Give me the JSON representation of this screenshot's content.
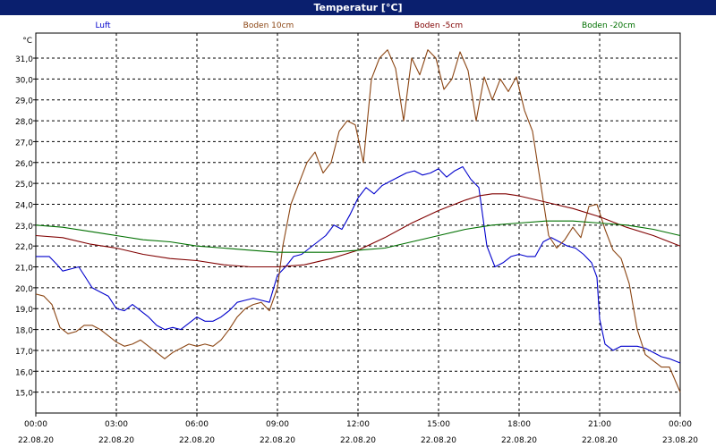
{
  "title": "Temperatur [°C]",
  "chart_data": {
    "type": "line",
    "title": "Temperatur [°C]",
    "ylabel": "°C",
    "xlabel": "",
    "ylim": [
      14.0,
      32.2
    ],
    "xlim": [
      0,
      24
    ],
    "yticks": [
      15.0,
      16.0,
      17.0,
      18.0,
      19.0,
      20.0,
      21.0,
      22.0,
      23.0,
      24.0,
      25.0,
      26.0,
      27.0,
      28.0,
      29.0,
      30.0,
      31.0
    ],
    "ytick_labels": [
      "15,0",
      "16,0",
      "17,0",
      "18,0",
      "19,0",
      "20,0",
      "21,0",
      "22,0",
      "23,0",
      "24,0",
      "25,0",
      "26,0",
      "27,0",
      "28,0",
      "29,0",
      "30,0",
      "31,0"
    ],
    "xticks": [
      {
        "x": 0,
        "time": "00:00",
        "date": "22.08.20"
      },
      {
        "x": 3,
        "time": "03:00",
        "date": "22.08.20"
      },
      {
        "x": 6,
        "time": "06:00",
        "date": "22.08.20"
      },
      {
        "x": 9,
        "time": "09:00",
        "date": "22.08.20"
      },
      {
        "x": 12,
        "time": "12:00",
        "date": "22.08.20"
      },
      {
        "x": 15,
        "time": "15:00",
        "date": "22.08.20"
      },
      {
        "x": 18,
        "time": "18:00",
        "date": "22.08.20"
      },
      {
        "x": 21,
        "time": "21:00",
        "date": "22.08.20"
      },
      {
        "x": 24,
        "time": "00:00",
        "date": "23.08.20"
      }
    ],
    "grid": true,
    "legend_position": "top",
    "series": [
      {
        "name": "Luft",
        "color": "#0000cc",
        "points": [
          [
            0.0,
            21.5
          ],
          [
            0.5,
            21.5
          ],
          [
            0.8,
            21.1
          ],
          [
            1.0,
            20.8
          ],
          [
            1.3,
            20.9
          ],
          [
            1.6,
            21.0
          ],
          [
            1.9,
            20.4
          ],
          [
            2.1,
            20.0
          ],
          [
            2.4,
            19.8
          ],
          [
            2.7,
            19.6
          ],
          [
            3.0,
            19.0
          ],
          [
            3.3,
            18.9
          ],
          [
            3.6,
            19.2
          ],
          [
            3.9,
            18.9
          ],
          [
            4.2,
            18.6
          ],
          [
            4.5,
            18.2
          ],
          [
            4.8,
            18.0
          ],
          [
            5.1,
            18.1
          ],
          [
            5.4,
            18.0
          ],
          [
            5.7,
            18.3
          ],
          [
            6.0,
            18.6
          ],
          [
            6.3,
            18.4
          ],
          [
            6.6,
            18.4
          ],
          [
            6.9,
            18.6
          ],
          [
            7.2,
            18.9
          ],
          [
            7.5,
            19.3
          ],
          [
            7.8,
            19.4
          ],
          [
            8.1,
            19.5
          ],
          [
            8.4,
            19.4
          ],
          [
            8.7,
            19.3
          ],
          [
            9.0,
            20.6
          ],
          [
            9.3,
            21.0
          ],
          [
            9.6,
            21.5
          ],
          [
            9.9,
            21.6
          ],
          [
            10.2,
            21.9
          ],
          [
            10.5,
            22.2
          ],
          [
            10.8,
            22.5
          ],
          [
            11.1,
            23.0
          ],
          [
            11.4,
            22.8
          ],
          [
            11.7,
            23.5
          ],
          [
            12.0,
            24.3
          ],
          [
            12.3,
            24.8
          ],
          [
            12.6,
            24.5
          ],
          [
            12.9,
            24.9
          ],
          [
            13.2,
            25.1
          ],
          [
            13.5,
            25.3
          ],
          [
            13.8,
            25.5
          ],
          [
            14.1,
            25.6
          ],
          [
            14.4,
            25.4
          ],
          [
            14.7,
            25.5
          ],
          [
            15.0,
            25.7
          ],
          [
            15.3,
            25.3
          ],
          [
            15.6,
            25.6
          ],
          [
            15.9,
            25.8
          ],
          [
            16.2,
            25.2
          ],
          [
            16.5,
            24.8
          ],
          [
            16.8,
            22.0
          ],
          [
            17.1,
            21.0
          ],
          [
            17.4,
            21.2
          ],
          [
            17.7,
            21.5
          ],
          [
            18.0,
            21.6
          ],
          [
            18.3,
            21.5
          ],
          [
            18.6,
            21.5
          ],
          [
            18.9,
            22.2
          ],
          [
            19.2,
            22.4
          ],
          [
            19.5,
            22.2
          ],
          [
            19.8,
            22.0
          ],
          [
            20.1,
            21.9
          ],
          [
            20.4,
            21.6
          ],
          [
            20.7,
            21.2
          ],
          [
            20.9,
            20.5
          ],
          [
            21.0,
            18.5
          ],
          [
            21.2,
            17.3
          ],
          [
            21.5,
            17.0
          ],
          [
            21.8,
            17.2
          ],
          [
            22.1,
            17.2
          ],
          [
            22.4,
            17.2
          ],
          [
            22.7,
            17.1
          ],
          [
            23.0,
            16.9
          ],
          [
            23.3,
            16.7
          ],
          [
            23.6,
            16.6
          ],
          [
            24.0,
            16.4
          ]
        ]
      },
      {
        "name": "Boden 10cm",
        "color": "#8b4513",
        "points": [
          [
            0.0,
            19.7
          ],
          [
            0.3,
            19.6
          ],
          [
            0.6,
            19.2
          ],
          [
            0.9,
            18.1
          ],
          [
            1.2,
            17.8
          ],
          [
            1.5,
            17.9
          ],
          [
            1.8,
            18.2
          ],
          [
            2.1,
            18.2
          ],
          [
            2.4,
            18.0
          ],
          [
            2.7,
            17.7
          ],
          [
            3.0,
            17.4
          ],
          [
            3.3,
            17.2
          ],
          [
            3.6,
            17.3
          ],
          [
            3.9,
            17.5
          ],
          [
            4.2,
            17.2
          ],
          [
            4.5,
            16.9
          ],
          [
            4.8,
            16.6
          ],
          [
            5.1,
            16.9
          ],
          [
            5.4,
            17.1
          ],
          [
            5.7,
            17.3
          ],
          [
            6.0,
            17.2
          ],
          [
            6.3,
            17.3
          ],
          [
            6.6,
            17.2
          ],
          [
            6.9,
            17.5
          ],
          [
            7.2,
            18.0
          ],
          [
            7.5,
            18.6
          ],
          [
            7.8,
            19.0
          ],
          [
            8.1,
            19.2
          ],
          [
            8.4,
            19.3
          ],
          [
            8.7,
            18.9
          ],
          [
            9.0,
            20.0
          ],
          [
            9.2,
            22.0
          ],
          [
            9.5,
            24.0
          ],
          [
            9.8,
            25.0
          ],
          [
            10.1,
            26.0
          ],
          [
            10.4,
            26.5
          ],
          [
            10.7,
            25.5
          ],
          [
            11.0,
            26.0
          ],
          [
            11.3,
            27.5
          ],
          [
            11.6,
            28.0
          ],
          [
            11.9,
            27.8
          ],
          [
            12.2,
            26.0
          ],
          [
            12.5,
            30.0
          ],
          [
            12.8,
            31.0
          ],
          [
            13.1,
            31.4
          ],
          [
            13.4,
            30.5
          ],
          [
            13.7,
            28.0
          ],
          [
            14.0,
            31.0
          ],
          [
            14.3,
            30.2
          ],
          [
            14.6,
            31.4
          ],
          [
            14.9,
            31.0
          ],
          [
            15.2,
            29.5
          ],
          [
            15.5,
            30.0
          ],
          [
            15.8,
            31.3
          ],
          [
            16.1,
            30.4
          ],
          [
            16.4,
            28.0
          ],
          [
            16.7,
            30.1
          ],
          [
            17.0,
            29.0
          ],
          [
            17.3,
            30.0
          ],
          [
            17.6,
            29.4
          ],
          [
            17.9,
            30.1
          ],
          [
            18.2,
            28.5
          ],
          [
            18.5,
            27.5
          ],
          [
            18.8,
            25.0
          ],
          [
            19.1,
            22.5
          ],
          [
            19.4,
            21.9
          ],
          [
            19.7,
            22.3
          ],
          [
            20.0,
            22.9
          ],
          [
            20.3,
            22.4
          ],
          [
            20.6,
            23.9
          ],
          [
            20.9,
            24.0
          ],
          [
            21.2,
            22.8
          ],
          [
            21.5,
            21.8
          ],
          [
            21.8,
            21.4
          ],
          [
            22.1,
            20.2
          ],
          [
            22.4,
            18.0
          ],
          [
            22.7,
            16.8
          ],
          [
            23.0,
            16.5
          ],
          [
            23.3,
            16.2
          ],
          [
            23.6,
            16.2
          ],
          [
            24.0,
            15.0
          ]
        ]
      },
      {
        "name": "Boden -5cm",
        "color": "#800000",
        "points": [
          [
            0.0,
            22.5
          ],
          [
            1.0,
            22.4
          ],
          [
            2.0,
            22.1
          ],
          [
            3.0,
            21.9
          ],
          [
            4.0,
            21.6
          ],
          [
            5.0,
            21.4
          ],
          [
            6.0,
            21.3
          ],
          [
            7.0,
            21.1
          ],
          [
            8.0,
            21.0
          ],
          [
            9.0,
            21.0
          ],
          [
            10.0,
            21.1
          ],
          [
            11.0,
            21.4
          ],
          [
            12.0,
            21.8
          ],
          [
            13.0,
            22.4
          ],
          [
            14.0,
            23.1
          ],
          [
            15.0,
            23.7
          ],
          [
            16.0,
            24.2
          ],
          [
            16.5,
            24.4
          ],
          [
            17.0,
            24.5
          ],
          [
            17.5,
            24.5
          ],
          [
            18.0,
            24.4
          ],
          [
            19.0,
            24.1
          ],
          [
            20.0,
            23.8
          ],
          [
            21.0,
            23.4
          ],
          [
            22.0,
            22.9
          ],
          [
            23.0,
            22.5
          ],
          [
            24.0,
            22.0
          ]
        ]
      },
      {
        "name": "Boden -20cm",
        "color": "#007000",
        "points": [
          [
            0.0,
            23.0
          ],
          [
            1.0,
            22.9
          ],
          [
            2.0,
            22.7
          ],
          [
            3.0,
            22.5
          ],
          [
            4.0,
            22.3
          ],
          [
            5.0,
            22.2
          ],
          [
            6.0,
            22.0
          ],
          [
            7.0,
            21.9
          ],
          [
            8.0,
            21.8
          ],
          [
            9.0,
            21.7
          ],
          [
            10.0,
            21.7
          ],
          [
            11.0,
            21.7
          ],
          [
            12.0,
            21.8
          ],
          [
            13.0,
            21.9
          ],
          [
            14.0,
            22.2
          ],
          [
            15.0,
            22.5
          ],
          [
            16.0,
            22.8
          ],
          [
            17.0,
            23.0
          ],
          [
            18.0,
            23.1
          ],
          [
            19.0,
            23.2
          ],
          [
            20.0,
            23.2
          ],
          [
            21.0,
            23.1
          ],
          [
            22.0,
            23.0
          ],
          [
            23.0,
            22.8
          ],
          [
            24.0,
            22.5
          ]
        ]
      }
    ]
  }
}
